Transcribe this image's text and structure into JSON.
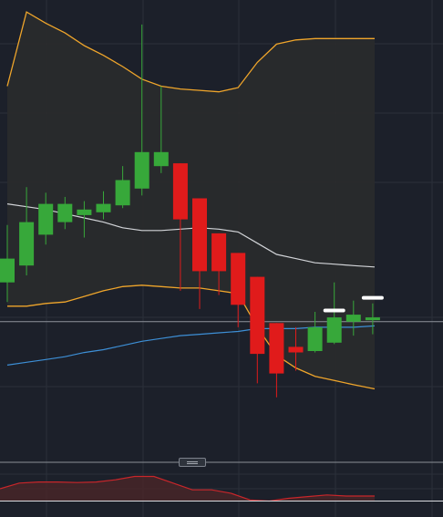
{
  "colors": {
    "background": "#1c202a",
    "grid": "#2b303a",
    "up": "#37a83a",
    "down": "#e01b1b",
    "bollinger_band": "#efa52b",
    "bollinger_middle": "#d2d4d8",
    "bollinger_fill": "#2a2b2c",
    "moving_average": "#3d8fd6",
    "price_line": "#8f939b",
    "current_price_marker": "#ffffff",
    "oscillator_line": "#c8262a",
    "oscillator_fill": "#4a2528",
    "pane_separator": "#8b8f97"
  },
  "chart_data": [
    {
      "type": "candlestick",
      "title": "",
      "xlabel": "",
      "ylabel": "",
      "ylim": [
        -22.85,
        9.55
      ],
      "grid": true,
      "legend": "none",
      "candles": [
        {
          "x": 0,
          "open": -10.6,
          "high": -6.5,
          "low": -12.0,
          "close": -8.9,
          "color": "up"
        },
        {
          "x": 1,
          "open": -9.4,
          "high": -3.8,
          "low": -10.1,
          "close": -6.3,
          "color": "up"
        },
        {
          "x": 2,
          "open": -7.2,
          "high": -4.2,
          "low": -7.9,
          "close": -5.0,
          "color": "up"
        },
        {
          "x": 3,
          "open": -6.3,
          "high": -4.5,
          "low": -6.8,
          "close": -5.0,
          "color": "up"
        },
        {
          "x": 4,
          "open": -5.8,
          "high": -4.8,
          "low": -7.4,
          "close": -5.4,
          "color": "up"
        },
        {
          "x": 5,
          "open": -5.6,
          "high": -4.1,
          "low": -6.1,
          "close": -5.0,
          "color": "up"
        },
        {
          "x": 6,
          "open": -5.1,
          "high": -2.3,
          "low": -5.3,
          "close": -3.3,
          "color": "up"
        },
        {
          "x": 7,
          "open": -3.9,
          "high": 7.8,
          "low": -4.4,
          "close": -1.3,
          "color": "up"
        },
        {
          "x": 8,
          "open": -2.3,
          "high": 3.4,
          "low": -2.8,
          "close": -1.3,
          "color": "up"
        },
        {
          "x": 9,
          "open": -2.1,
          "high": -2.1,
          "low": -11.2,
          "close": -6.1,
          "color": "down"
        },
        {
          "x": 10,
          "open": -4.6,
          "high": -4.6,
          "low": -12.5,
          "close": -9.8,
          "color": "down"
        },
        {
          "x": 11,
          "open": -7.1,
          "high": -7.1,
          "low": -11.5,
          "close": -9.8,
          "color": "down"
        },
        {
          "x": 12,
          "open": -8.5,
          "high": -8.5,
          "low": -13.8,
          "close": -12.2,
          "color": "down"
        },
        {
          "x": 13,
          "open": -10.2,
          "high": -10.2,
          "low": -17.8,
          "close": -15.7,
          "color": "down"
        },
        {
          "x": 14,
          "open": -13.5,
          "high": -13.5,
          "low": -18.8,
          "close": -17.1,
          "color": "down"
        },
        {
          "x": 15,
          "open": -15.2,
          "high": -13.8,
          "low": -16.9,
          "close": -15.6,
          "color": "down"
        },
        {
          "x": 16,
          "open": -15.5,
          "high": -12.7,
          "low": -15.6,
          "close": -13.8,
          "color": "up"
        },
        {
          "x": 17,
          "open": -14.9,
          "high": -10.6,
          "low": -15.0,
          "close": -13.1,
          "color": "up"
        },
        {
          "x": 18,
          "open": -13.4,
          "high": -11.9,
          "low": -14.4,
          "close": -12.9,
          "color": "up"
        },
        {
          "x": 19,
          "open": -13.3,
          "high": -12.1,
          "low": -14.3,
          "close": -13.1,
          "color": "up"
        }
      ],
      "bollinger_upper": [
        3.4,
        8.7,
        7.9,
        7.2,
        6.3,
        5.6,
        4.8,
        3.9,
        3.4,
        3.2,
        3.1,
        3.0,
        3.3,
        5.1,
        6.4,
        6.7,
        6.8,
        6.8,
        6.8,
        6.8
      ],
      "bollinger_middle": [
        -5.0,
        -5.2,
        -5.4,
        -5.7,
        -6.0,
        -6.3,
        -6.7,
        -6.9,
        -6.9,
        -6.8,
        -6.7,
        -6.8,
        -7.0,
        -7.8,
        -8.6,
        -8.9,
        -9.2,
        -9.3,
        -9.4,
        -9.5
      ],
      "bollinger_lower": [
        -12.3,
        -12.3,
        -12.1,
        -12.0,
        -11.6,
        -11.2,
        -10.9,
        -10.8,
        -10.9,
        -11.0,
        -11.0,
        -11.2,
        -11.4,
        -13.8,
        -15.8,
        -16.7,
        -17.3,
        -17.6,
        -17.9,
        -18.2
      ],
      "moving_average": [
        -16.5,
        -16.3,
        -16.1,
        -15.9,
        -15.6,
        -15.4,
        -15.1,
        -14.8,
        -14.6,
        -14.4,
        -14.3,
        -14.2,
        -14.1,
        -13.9,
        -13.9,
        -13.9,
        -13.8,
        -13.8,
        -13.8,
        -13.7
      ],
      "current_price": -13.4,
      "last_price_markers": [
        {
          "x": 17,
          "value": -12.6
        },
        {
          "x": 19,
          "value": -11.7
        }
      ]
    },
    {
      "type": "area",
      "title": "",
      "xlabel": "",
      "ylabel": "",
      "ylim": [
        -2,
        24
      ],
      "grid": true,
      "legend": "none",
      "x": [
        0,
        1,
        2,
        3,
        4,
        5,
        6,
        7,
        8,
        9,
        10,
        11,
        12,
        13,
        14,
        15,
        16,
        17,
        18,
        19
      ],
      "values": [
        11.0,
        16.0,
        17.0,
        17.0,
        16.5,
        17.0,
        19.0,
        22.0,
        22.0,
        16.0,
        10.0,
        10.0,
        7.0,
        1.0,
        0.0,
        2.5,
        4.0,
        5.5,
        4.5,
        4.5
      ],
      "baseline": 0
    }
  ]
}
